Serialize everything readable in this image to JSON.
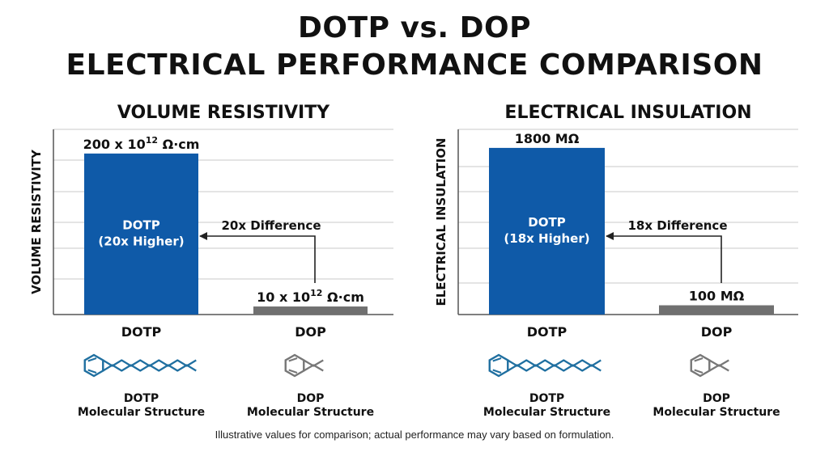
{
  "header": {
    "title_line1": "DOTP vs. DOP",
    "title_line2": "ELECTRICAL PERFORMANCE COMPARISON"
  },
  "footnote": "Illustrative values for comparison; actual performance may vary based on formulation.",
  "colors": {
    "dotp_bar": "#0f5aa8",
    "dop_bar": "#707070",
    "molecule_dotp": "#1f6fa0",
    "molecule_dop": "#777777"
  },
  "chart_data": [
    {
      "type": "bar",
      "title": "VOLUME RESISTIVITY",
      "ylabel": "VOLUME RESISTIVITY",
      "unit": "x 10^12 Ω·cm",
      "categories": [
        "DOTP",
        "DOP"
      ],
      "values": [
        200,
        10
      ],
      "ylim": [
        0,
        230
      ],
      "grid": true,
      "value_labels": [
        {
          "base": "200 x 10",
          "sup": "12",
          "rest": " Ω·cm"
        },
        {
          "base": "10 x 10",
          "sup": "12",
          "rest": " Ω·cm"
        }
      ],
      "bar_text": [
        "DOTP",
        "(20x Higher)"
      ],
      "annotation": "20x Difference",
      "structures": [
        {
          "name": "DOTP",
          "caption": [
            "DOTP",
            "Molecular Structure"
          ]
        },
        {
          "name": "DOP",
          "caption": [
            "DOP",
            "Molecular Structure"
          ]
        }
      ]
    },
    {
      "type": "bar",
      "title": "ELECTRICAL INSULATION",
      "ylabel": "ELECTRICAL INSULATION",
      "unit": "MΩ",
      "categories": [
        "DOTP",
        "DOP"
      ],
      "values": [
        1800,
        100
      ],
      "ylim": [
        0,
        2000
      ],
      "grid": true,
      "value_labels": [
        {
          "base": "1800 MΩ",
          "sup": "",
          "rest": ""
        },
        {
          "base": "100 MΩ",
          "sup": "",
          "rest": ""
        }
      ],
      "bar_text": [
        "DOTP",
        "(18x Higher)"
      ],
      "annotation": "18x Difference",
      "structures": [
        {
          "name": "DOTP",
          "caption": [
            "DOTP",
            "Molecular Structure"
          ]
        },
        {
          "name": "DOP",
          "caption": [
            "DOP",
            "Molecular Structure"
          ]
        }
      ]
    }
  ]
}
